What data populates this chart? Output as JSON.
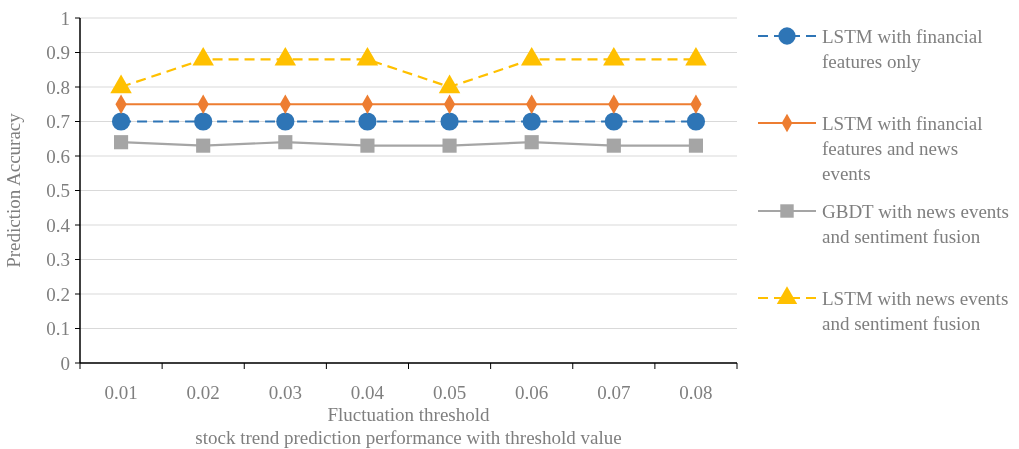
{
  "chart_data": {
    "type": "line",
    "title": "stock trend prediction performance with threshold value",
    "xlabel": "Fluctuation threshold",
    "ylabel": "Prediction Accuracy",
    "categories": [
      "0.01",
      "0.02",
      "0.03",
      "0.04",
      "0.05",
      "0.06",
      "0.07",
      "0.08"
    ],
    "series": [
      {
        "name": "LSTM with financial features only",
        "color": "#2e75b6",
        "marker": "circle",
        "line_style": "dashed",
        "values": [
          0.7,
          0.7,
          0.7,
          0.7,
          0.7,
          0.7,
          0.7,
          0.7
        ]
      },
      {
        "name": "LSTM with financial features and news events",
        "color": "#ed7d31",
        "marker": "diamond",
        "line_style": "solid",
        "values": [
          0.75,
          0.75,
          0.75,
          0.75,
          0.75,
          0.75,
          0.75,
          0.75
        ]
      },
      {
        "name": "GBDT with news events and sentiment fusion",
        "color": "#a5a5a5",
        "marker": "square",
        "line_style": "solid",
        "values": [
          0.64,
          0.63,
          0.64,
          0.63,
          0.63,
          0.64,
          0.63,
          0.63
        ]
      },
      {
        "name": "LSTM with news events and sentiment fusion",
        "color": "#ffc000",
        "marker": "triangle",
        "line_style": "dashed",
        "values": [
          0.8,
          0.88,
          0.88,
          0.88,
          0.8,
          0.88,
          0.88,
          0.88
        ]
      }
    ],
    "ylim": [
      0,
      1
    ],
    "yticks": [
      0,
      0.1,
      0.2,
      0.3,
      0.4,
      0.5,
      0.6,
      0.7,
      0.8,
      0.9,
      1
    ],
    "grid": "y",
    "legend": "right"
  }
}
